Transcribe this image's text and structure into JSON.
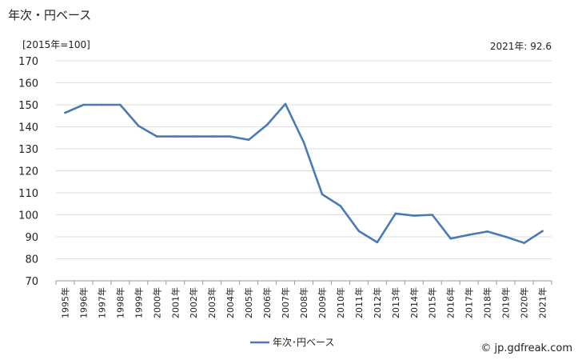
{
  "header": {
    "title": "年次・円ベース",
    "unit": "[2015年=100]",
    "latest": "2021年: 92.6"
  },
  "footer": {
    "credit": "© jp.gdfreak.com"
  },
  "chart_data": {
    "type": "line",
    "title": "年次・円ベース",
    "ylim": [
      70,
      170
    ],
    "yticks": [
      70,
      80,
      90,
      100,
      110,
      120,
      130,
      140,
      150,
      160,
      170
    ],
    "categories": [
      "1995年",
      "1996年",
      "1997年",
      "1998年",
      "1999年",
      "2000年",
      "2001年",
      "2002年",
      "2003年",
      "2004年",
      "2005年",
      "2006年",
      "2007年",
      "2008年",
      "2009年",
      "2010年",
      "2011年",
      "2012年",
      "2013年",
      "2014年",
      "2015年",
      "2016年",
      "2017年",
      "2018年",
      "2019年",
      "2020年",
      "2021年"
    ],
    "series": [
      {
        "name": "年次･円ベース",
        "color": "#4a7ab5",
        "values": [
          146.4,
          150.0,
          150.0,
          150.0,
          140.4,
          135.6,
          135.6,
          135.6,
          135.6,
          135.6,
          134.1,
          140.9,
          150.4,
          132.9,
          109.3,
          104.0,
          92.6,
          87.5,
          100.6,
          99.6,
          100.0,
          89.2,
          90.9,
          92.4,
          90.0,
          87.2,
          92.6
        ]
      }
    ],
    "grid": true,
    "legend": "bottom-center"
  }
}
